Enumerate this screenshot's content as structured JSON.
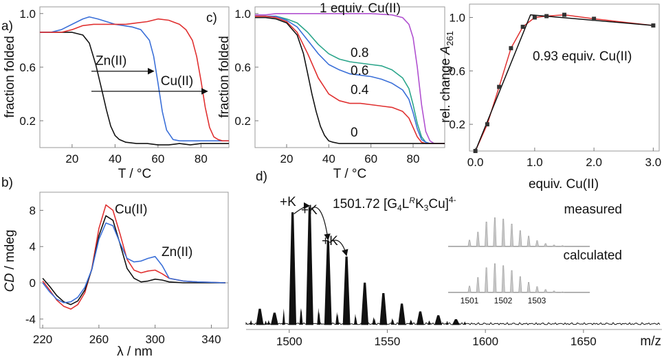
{
  "chart_data": [
    {
      "panel_label": "a)",
      "type": "line",
      "xlabel": "T / °C",
      "ylabel": "fraction folded",
      "xlim": [
        5,
        93
      ],
      "ylim": [
        0.0,
        1.05
      ],
      "xticks": [
        20,
        40,
        60,
        80
      ],
      "yticks": [
        0.2,
        0.6,
        1.0
      ],
      "ytick_labels": [
        "0.2",
        "0.6",
        "1.0"
      ],
      "series": [
        {
          "color": "#111111",
          "x": [
            5,
            10,
            15,
            20,
            25,
            28,
            31,
            34,
            36,
            38,
            40,
            42,
            45,
            50,
            55,
            60,
            65,
            70,
            75,
            80,
            85,
            93
          ],
          "y": [
            0.86,
            0.86,
            0.86,
            0.86,
            0.84,
            0.78,
            0.62,
            0.42,
            0.28,
            0.16,
            0.09,
            0.06,
            0.04,
            0.03,
            0.03,
            0.02,
            0.02,
            0.03,
            0.02,
            0.03,
            0.03,
            0.03
          ]
        },
        {
          "color": "#3a6fd8",
          "x": [
            5,
            10,
            15,
            20,
            25,
            28,
            32,
            36,
            40,
            44,
            48,
            52,
            56,
            58,
            60,
            62,
            64,
            67,
            70,
            75,
            80,
            85,
            93
          ],
          "y": [
            0.86,
            0.86,
            0.88,
            0.92,
            0.96,
            0.975,
            0.96,
            0.94,
            0.92,
            0.91,
            0.9,
            0.88,
            0.8,
            0.68,
            0.48,
            0.27,
            0.13,
            0.06,
            0.05,
            0.05,
            0.05,
            0.05,
            0.05
          ]
        },
        {
          "color": "#e03030",
          "x": [
            5,
            10,
            15,
            20,
            25,
            30,
            35,
            40,
            45,
            50,
            55,
            60,
            65,
            70,
            73,
            76,
            78,
            80,
            82,
            84,
            86,
            88,
            90,
            93
          ],
          "y": [
            0.86,
            0.86,
            0.86,
            0.88,
            0.91,
            0.92,
            0.92,
            0.92,
            0.92,
            0.93,
            0.94,
            0.96,
            0.95,
            0.92,
            0.88,
            0.8,
            0.68,
            0.5,
            0.3,
            0.15,
            0.08,
            0.06,
            0.05,
            0.05
          ]
        }
      ],
      "annotations": [
        {
          "text": "Zn(II)",
          "arrow_from_x": 29,
          "arrow_to_x": 58,
          "arrow_y": 0.57
        },
        {
          "text": "Cu(II)",
          "arrow_from_x": 29,
          "arrow_to_x": 83,
          "arrow_y": 0.42
        }
      ]
    },
    {
      "panel_label": "c)",
      "type": "line",
      "xlabel": "T / °C",
      "ylabel": "fraction folded",
      "xlim": [
        5,
        95
      ],
      "ylim": [
        0.0,
        1.05
      ],
      "xticks": [
        20,
        40,
        60,
        80
      ],
      "yticks": [
        0.2,
        0.6,
        1.0
      ],
      "ytick_labels": [
        "0.2",
        "0.6",
        "1.0"
      ],
      "series": [
        {
          "name": "1 equiv. Cu(II)",
          "color": "#b050d0",
          "x": [
            5,
            10,
            15,
            20,
            25,
            30,
            40,
            50,
            60,
            70,
            75,
            78,
            80,
            82,
            84,
            86,
            88,
            90,
            95
          ],
          "y": [
            0.99,
            0.99,
            1.0,
            1.0,
            1.0,
            1.0,
            1.0,
            1.0,
            1.0,
            0.99,
            0.97,
            0.92,
            0.82,
            0.6,
            0.32,
            0.12,
            0.05,
            0.03,
            0.03
          ]
        },
        {
          "name": "0.8",
          "color": "#2aa58a",
          "x": [
            5,
            10,
            15,
            20,
            25,
            30,
            35,
            40,
            45,
            50,
            55,
            60,
            65,
            70,
            75,
            78,
            80,
            82,
            84,
            86,
            88,
            95
          ],
          "y": [
            0.98,
            0.98,
            0.98,
            0.96,
            0.93,
            0.86,
            0.77,
            0.7,
            0.66,
            0.64,
            0.63,
            0.62,
            0.61,
            0.58,
            0.52,
            0.44,
            0.32,
            0.18,
            0.08,
            0.04,
            0.03,
            0.03
          ]
        },
        {
          "name": "0.6",
          "color": "#3a6fd8",
          "x": [
            5,
            10,
            15,
            20,
            25,
            30,
            35,
            40,
            45,
            50,
            55,
            60,
            65,
            70,
            75,
            78,
            80,
            82,
            84,
            86,
            88,
            95
          ],
          "y": [
            0.98,
            0.98,
            0.98,
            0.95,
            0.9,
            0.8,
            0.7,
            0.62,
            0.58,
            0.55,
            0.54,
            0.53,
            0.51,
            0.48,
            0.43,
            0.36,
            0.26,
            0.14,
            0.06,
            0.04,
            0.03,
            0.03
          ]
        },
        {
          "name": "0.4",
          "color": "#e03030",
          "x": [
            5,
            10,
            15,
            20,
            25,
            30,
            35,
            40,
            45,
            50,
            55,
            60,
            65,
            70,
            75,
            78,
            80,
            82,
            84,
            86,
            88,
            95
          ],
          "y": [
            0.98,
            0.98,
            0.97,
            0.94,
            0.86,
            0.7,
            0.52,
            0.4,
            0.35,
            0.33,
            0.33,
            0.32,
            0.31,
            0.3,
            0.27,
            0.22,
            0.15,
            0.08,
            0.04,
            0.03,
            0.03,
            0.03
          ]
        },
        {
          "name": "0",
          "color": "#111111",
          "x": [
            5,
            10,
            15,
            20,
            25,
            28,
            30,
            32,
            34,
            36,
            38,
            40,
            42,
            45,
            50,
            60,
            70,
            80,
            95
          ],
          "y": [
            0.97,
            0.97,
            0.96,
            0.93,
            0.84,
            0.7,
            0.55,
            0.4,
            0.27,
            0.16,
            0.09,
            0.05,
            0.04,
            0.03,
            0.03,
            0.03,
            0.03,
            0.03,
            0.03
          ]
        }
      ]
    },
    {
      "type": "line",
      "xlabel": "equiv. Cu(II)",
      "ylabel": "rel. change A261",
      "ylabel_main": "rel. change ",
      "ylabel_italic": "A",
      "ylabel_sub": "261",
      "xlim": [
        -0.1,
        3.1
      ],
      "ylim": [
        0.0,
        1.1
      ],
      "xticks": [
        0.0,
        1.0,
        2.0,
        3.0
      ],
      "xtick_labels": [
        "0.0",
        "1.0",
        "2.0",
        "3.0"
      ],
      "yticks": [
        0.2,
        0.6,
        1.0
      ],
      "ytick_labels": [
        "0.2",
        "0.6",
        "1.0"
      ],
      "annotation": "0.93 equiv. Cu(II)",
      "points": {
        "x": [
          0.0,
          0.2,
          0.4,
          0.6,
          0.8,
          1.0,
          1.2,
          1.5,
          2.0,
          3.0
        ],
        "y": [
          0.0,
          0.2,
          0.48,
          0.77,
          0.93,
          1.0,
          1.01,
          1.02,
          0.99,
          0.94
        ],
        "color": "#333333"
      },
      "series": [
        {
          "color": "#e03030",
          "x": [
            0.0,
            0.2,
            0.4,
            0.6,
            0.8,
            1.0,
            1.2,
            1.5,
            2.0,
            3.0
          ],
          "y": [
            0.0,
            0.2,
            0.48,
            0.77,
            0.93,
            1.0,
            1.01,
            1.02,
            0.99,
            0.94
          ]
        },
        {
          "color": "#111111",
          "x": [
            0.0,
            0.93,
            3.0
          ],
          "y": [
            0.0,
            1.02,
            0.94
          ]
        }
      ]
    },
    {
      "panel_label": "b)",
      "type": "line",
      "xlabel": "λ / nm",
      "ylabel": "CD / mdeg",
      "ylabel_italic": "CD",
      "ylabel_rest": " / mdeg",
      "xlim": [
        218,
        352
      ],
      "ylim": [
        -5,
        10
      ],
      "xticks": [
        220,
        260,
        300,
        340
      ],
      "yticks": [
        -4,
        0,
        4,
        8
      ],
      "ytick_labels": [
        "-4",
        "0",
        "4",
        "8"
      ],
      "zero_line": true,
      "series": [
        {
          "name": "Cu(II)",
          "color": "#e03030",
          "x": [
            220,
            225,
            230,
            235,
            240,
            245,
            250,
            255,
            260,
            265,
            270,
            275,
            280,
            285,
            290,
            295,
            300,
            305,
            310,
            320,
            330,
            340,
            350
          ],
          "y": [
            0.2,
            -0.8,
            -1.9,
            -2.6,
            -2.9,
            -2.4,
            -1.1,
            1.6,
            6.0,
            8.6,
            8.0,
            5.4,
            2.6,
            1.4,
            1.1,
            1.3,
            1.4,
            1.0,
            0.5,
            0.2,
            0.1,
            0.05,
            0.0
          ]
        },
        {
          "color": "#111111",
          "x": [
            220,
            225,
            230,
            235,
            240,
            245,
            250,
            255,
            260,
            265,
            270,
            275,
            280,
            285,
            290,
            295,
            300,
            305,
            310,
            320,
            330,
            340,
            350
          ],
          "y": [
            0.5,
            -0.4,
            -1.4,
            -2.1,
            -2.4,
            -2.0,
            -0.8,
            1.5,
            5.2,
            7.4,
            6.9,
            4.3,
            1.6,
            0.5,
            0.1,
            0.2,
            0.4,
            0.3,
            0.1,
            0.0,
            0.0,
            0.0,
            0.0
          ]
        },
        {
          "name": "Zn(II)",
          "color": "#3a6fd8",
          "x": [
            220,
            225,
            230,
            235,
            240,
            245,
            250,
            255,
            260,
            265,
            270,
            275,
            280,
            285,
            290,
            295,
            300,
            305,
            310,
            320,
            330,
            340,
            350
          ],
          "y": [
            0.0,
            -1.0,
            -1.8,
            -2.2,
            -2.1,
            -1.6,
            -0.5,
            1.5,
            4.8,
            6.6,
            6.3,
            4.4,
            2.7,
            2.3,
            2.4,
            2.7,
            2.9,
            1.9,
            0.5,
            0.2,
            0.1,
            0.05,
            0.0
          ]
        }
      ]
    },
    {
      "panel_label": "d)",
      "type": "line",
      "xlabel": "m/z",
      "xlim": [
        1478,
        1690
      ],
      "xticks": [
        1500,
        1550,
        1600,
        1650
      ],
      "title_main": "1501.72 [G",
      "title_parts": [
        "4",
        "L",
        "R",
        "K",
        "3",
        "Cu]",
        "4-"
      ],
      "peaks": [
        {
          "x": 1485,
          "height": 0.12
        },
        {
          "x": 1492.5,
          "height": 0.09
        },
        {
          "x": 1501.7,
          "height": 0.86
        },
        {
          "x": 1510.4,
          "height": 0.9
        },
        {
          "x": 1519.8,
          "height": 0.64
        },
        {
          "x": 1529.2,
          "height": 0.52
        },
        {
          "x": 1538.5,
          "height": 0.32
        },
        {
          "x": 1548,
          "height": 0.24
        },
        {
          "x": 1557.4,
          "height": 0.16
        },
        {
          "x": 1566.8,
          "height": 0.1
        },
        {
          "x": 1576,
          "height": 0.07
        },
        {
          "x": 1585,
          "height": 0.04
        }
      ],
      "peak_labels": [
        "+K",
        "+K",
        "+K"
      ],
      "insets": [
        {
          "label": "measured",
          "heights": [
            0.22,
            0.5,
            0.85,
            1.0,
            0.95,
            0.78,
            0.55,
            0.36,
            0.2,
            0.1,
            0.05,
            0.03
          ]
        },
        {
          "label": "calculated",
          "heights": [
            0.22,
            0.52,
            0.86,
            1.0,
            0.93,
            0.76,
            0.55,
            0.35,
            0.2,
            0.1,
            0.05,
            0.02
          ],
          "tick_labels": [
            "1501",
            "1502",
            "1503"
          ]
        }
      ]
    }
  ]
}
